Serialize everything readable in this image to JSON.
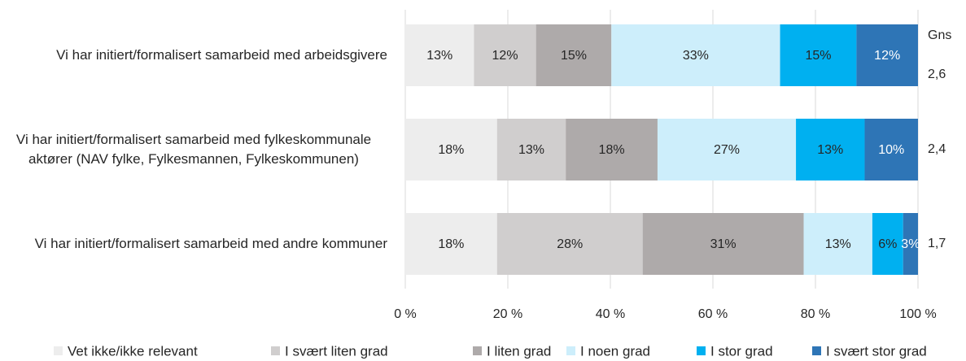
{
  "chart_data": {
    "type": "stacked-bar-horizontal",
    "categories": [
      "Vi har initiert/formalisert samarbeid med arbeidsgivere",
      "Vi har initiert/formalisert samarbeid med fylkeskommunale aktører (NAV fylke, Fylkesmannen, Fylkeskommunen)",
      "Vi har initiert/formalisert samarbeid med andre kommuner"
    ],
    "series": [
      {
        "name": "Vet ikke/ikke relevant",
        "color": "#ededed",
        "values": [
          13.4,
          17.9,
          17.9
        ],
        "value_labels": [
          "13%",
          "18%",
          "18%"
        ]
      },
      {
        "name": "I svært liten grad",
        "color": "#d0cece",
        "values": [
          12.1,
          13.4,
          28.4
        ],
        "value_labels": [
          "12%",
          "13%",
          "28%"
        ]
      },
      {
        "name": "I liten grad",
        "color": "#aeaaaa",
        "values": [
          14.7,
          17.9,
          31.4
        ],
        "value_labels": [
          "15%",
          "18%",
          "31%"
        ]
      },
      {
        "name": "I noen grad",
        "color": "#cdeefb",
        "values": [
          32.9,
          27.0,
          13.4
        ],
        "value_labels": [
          "33%",
          "27%",
          "13%"
        ]
      },
      {
        "name": "I stor grad",
        "color": "#00b0f0",
        "values": [
          14.9,
          13.4,
          6.0
        ],
        "value_labels": [
          "15%",
          "13%",
          "6%"
        ]
      },
      {
        "name": "I svært stor grad",
        "color": "#2e75b6",
        "values": [
          12.0,
          10.4,
          2.9
        ],
        "value_labels": [
          "12%",
          "10%",
          "3%"
        ]
      }
    ],
    "averages": {
      "label": "Gns",
      "values": [
        2.6,
        2.4,
        1.7
      ],
      "value_labels": [
        "2,6",
        "2,4",
        "1,7"
      ]
    },
    "xlim": [
      0,
      100
    ],
    "xticks": [
      {
        "value": 0,
        "label": "0 %"
      },
      {
        "value": 20,
        "label": "20 %"
      },
      {
        "value": 40,
        "label": "40 %"
      },
      {
        "value": 60,
        "label": "60 %"
      },
      {
        "value": 80,
        "label": "80 %"
      },
      {
        "value": 100,
        "label": "100 %"
      }
    ],
    "grid": true,
    "legend": "bottom"
  }
}
